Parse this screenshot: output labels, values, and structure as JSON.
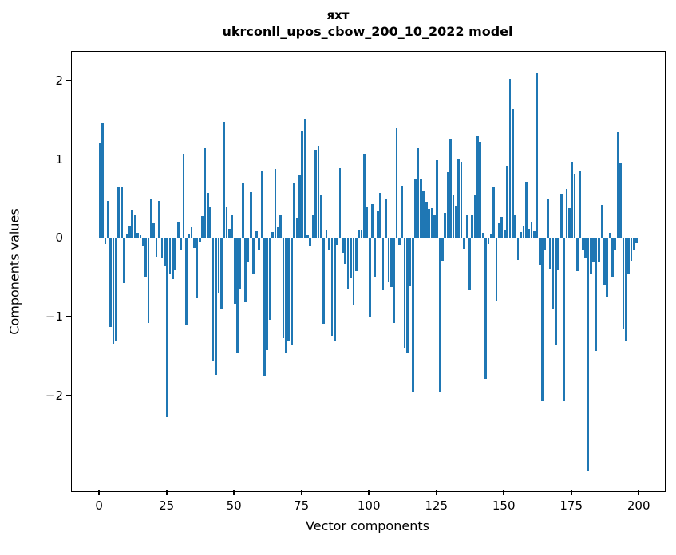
{
  "figure": {
    "suptitle": "яхт",
    "axes_title": "ukrconll_upos_cbow_200_10_2022 model",
    "background_color": "#ffffff",
    "spine_color": "#000000"
  },
  "chart_data": {
    "type": "bar",
    "title": "яхт",
    "subtitle": "ukrconll_upos_cbow_200_10_2022 model",
    "xlabel": "Vector components",
    "ylabel": "Components values",
    "bar_color": "#1f77b4",
    "bar_width_data_units": 0.8,
    "grid": false,
    "legend": "none",
    "x_is_index": true,
    "xlim": [
      -10.4,
      209.4
    ],
    "ylim": [
      -3.2,
      2.37
    ],
    "xticks": [
      0,
      25,
      50,
      75,
      100,
      125,
      150,
      175,
      200
    ],
    "xtick_labels": [
      "0",
      "25",
      "50",
      "75",
      "100",
      "125",
      "150",
      "175",
      "200"
    ],
    "yticks": [
      2,
      1,
      0,
      -1,
      -2
    ],
    "ytick_labels": [
      "2",
      "1",
      "0",
      "−1",
      "−2"
    ],
    "values": [
      1.22,
      1.47,
      -0.07,
      0.48,
      -1.12,
      -1.34,
      -1.3,
      0.65,
      0.66,
      -0.56,
      0.06,
      0.17,
      0.37,
      0.31,
      0.08,
      0.05,
      -0.1,
      -0.48,
      -1.07,
      0.5,
      0.2,
      -0.23,
      0.48,
      -0.25,
      -0.35,
      -2.26,
      -0.45,
      -0.51,
      -0.4,
      0.21,
      -0.14,
      1.08,
      -1.1,
      0.06,
      0.15,
      -0.12,
      -0.75,
      -0.05,
      0.29,
      1.15,
      0.58,
      0.4,
      -1.55,
      -1.72,
      -0.68,
      -0.9,
      1.48,
      0.4,
      0.13,
      0.3,
      -0.82,
      -1.45,
      -0.63,
      0.7,
      -0.8,
      -0.3,
      0.59,
      -0.44,
      0.1,
      -0.14,
      0.85,
      -1.74,
      -1.41,
      -1.03,
      0.09,
      0.88,
      0.15,
      0.3,
      -1.26,
      -1.45,
      -1.3,
      -1.35,
      0.71,
      0.27,
      0.8,
      1.37,
      1.52,
      0.05,
      -0.1,
      0.3,
      1.13,
      1.18,
      0.55,
      -1.08,
      0.12,
      -0.15,
      -1.23,
      -1.3,
      -0.08,
      0.89,
      -0.18,
      -0.32,
      -0.63,
      -0.49,
      -0.83,
      -0.41,
      0.12,
      0.12,
      1.08,
      0.41,
      -1.0,
      0.44,
      -0.48,
      0.35,
      0.58,
      -0.65,
      0.5,
      -0.55,
      -0.61,
      -1.07,
      1.4,
      -0.08,
      0.67,
      -1.38,
      -1.45,
      -0.6,
      -1.95,
      0.76,
      1.16,
      0.76,
      0.6,
      0.47,
      0.38,
      0.39,
      0.31,
      1.0,
      -1.94,
      -0.28,
      0.33,
      0.84,
      1.27,
      0.55,
      0.42,
      1.02,
      0.97,
      -0.13,
      0.3,
      -0.65,
      0.3,
      0.55,
      1.3,
      1.23,
      0.08,
      -1.77,
      -0.07,
      0.07,
      0.65,
      -0.78,
      0.2,
      0.28,
      0.12,
      0.92,
      2.03,
      1.64,
      0.3,
      -0.27,
      0.09,
      0.16,
      0.72,
      0.13,
      0.22,
      0.1,
      2.1,
      -0.33,
      -2.06,
      -0.15,
      0.5,
      -0.38,
      -0.9,
      -1.35,
      -0.4,
      0.57,
      -2.06,
      0.63,
      0.39,
      0.97,
      0.82,
      -0.41,
      0.86,
      -0.15,
      -0.24,
      -2.95,
      -0.45,
      -0.3,
      -1.42,
      -0.3,
      0.43,
      -0.58,
      -0.73,
      0.08,
      -0.48,
      -0.15,
      1.36,
      0.96,
      -1.15,
      -1.3,
      -0.45,
      -0.28,
      -0.14,
      -0.06
    ]
  }
}
